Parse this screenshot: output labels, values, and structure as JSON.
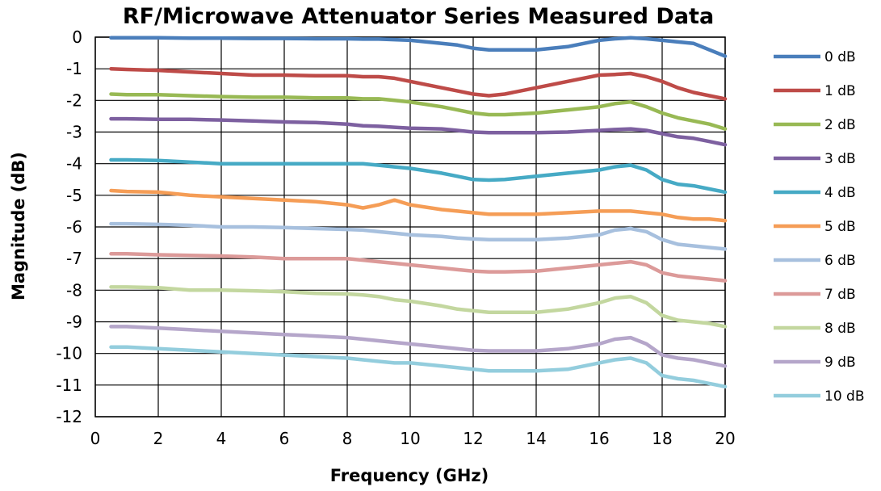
{
  "chart_data": {
    "type": "line",
    "title": "RF/Microwave Attenuator Series Measured Data",
    "xlabel": "Frequency (GHz)",
    "ylabel": "Magnitude (dB)",
    "xlim": [
      0,
      20
    ],
    "ylim": [
      -12,
      0
    ],
    "xticks": [
      0,
      2,
      4,
      6,
      8,
      10,
      12,
      14,
      16,
      18,
      20
    ],
    "yticks": [
      0,
      -1,
      -2,
      -3,
      -4,
      -5,
      -6,
      -7,
      -8,
      -9,
      -10,
      -11,
      -12
    ],
    "grid": true,
    "legend_position": "right",
    "x": [
      0.5,
      1,
      2,
      3,
      4,
      5,
      6,
      7,
      8,
      8.5,
      9,
      9.5,
      10,
      11,
      11.5,
      12,
      12.5,
      13,
      14,
      15,
      16,
      16.5,
      17,
      17.5,
      18,
      18.5,
      19,
      19.5,
      20
    ],
    "series": [
      {
        "name": "0 dB",
        "color": "#4a7ebb",
        "values": [
          -0.02,
          -0.02,
          -0.02,
          -0.03,
          -0.03,
          -0.04,
          -0.04,
          -0.05,
          -0.05,
          -0.06,
          -0.06,
          -0.08,
          -0.1,
          -0.2,
          -0.25,
          -0.35,
          -0.4,
          -0.4,
          -0.4,
          -0.3,
          -0.1,
          -0.05,
          -0.02,
          -0.05,
          -0.1,
          -0.15,
          -0.2,
          -0.4,
          -0.6
        ]
      },
      {
        "name": "1 dB",
        "color": "#be4b48",
        "values": [
          -1.0,
          -1.02,
          -1.05,
          -1.1,
          -1.15,
          -1.2,
          -1.2,
          -1.22,
          -1.22,
          -1.25,
          -1.25,
          -1.3,
          -1.4,
          -1.6,
          -1.7,
          -1.8,
          -1.85,
          -1.8,
          -1.6,
          -1.4,
          -1.2,
          -1.18,
          -1.15,
          -1.25,
          -1.4,
          -1.6,
          -1.75,
          -1.85,
          -1.95
        ]
      },
      {
        "name": "2 dB",
        "color": "#98b954",
        "values": [
          -1.8,
          -1.82,
          -1.82,
          -1.85,
          -1.88,
          -1.9,
          -1.9,
          -1.92,
          -1.92,
          -1.95,
          -1.95,
          -2.0,
          -2.05,
          -2.2,
          -2.3,
          -2.4,
          -2.45,
          -2.45,
          -2.4,
          -2.3,
          -2.2,
          -2.1,
          -2.05,
          -2.2,
          -2.4,
          -2.55,
          -2.65,
          -2.75,
          -2.9
        ]
      },
      {
        "name": "3 dB",
        "color": "#7d60a0",
        "values": [
          -2.58,
          -2.58,
          -2.6,
          -2.6,
          -2.62,
          -2.65,
          -2.68,
          -2.7,
          -2.75,
          -2.8,
          -2.82,
          -2.85,
          -2.88,
          -2.9,
          -2.95,
          -3.0,
          -3.02,
          -3.02,
          -3.02,
          -3.0,
          -2.95,
          -2.92,
          -2.9,
          -2.95,
          -3.05,
          -3.15,
          -3.2,
          -3.3,
          -3.4
        ]
      },
      {
        "name": "4 dB",
        "color": "#46aac5",
        "values": [
          -3.88,
          -3.88,
          -3.9,
          -3.95,
          -4.0,
          -4.0,
          -4.0,
          -4.0,
          -4.0,
          -4.0,
          -4.05,
          -4.1,
          -4.15,
          -4.3,
          -4.4,
          -4.5,
          -4.52,
          -4.5,
          -4.4,
          -4.3,
          -4.2,
          -4.1,
          -4.05,
          -4.2,
          -4.5,
          -4.65,
          -4.7,
          -4.8,
          -4.9
        ]
      },
      {
        "name": "5 dB",
        "color": "#f59d56",
        "values": [
          -4.85,
          -4.88,
          -4.9,
          -5.0,
          -5.05,
          -5.1,
          -5.15,
          -5.2,
          -5.3,
          -5.4,
          -5.3,
          -5.15,
          -5.3,
          -5.45,
          -5.5,
          -5.55,
          -5.6,
          -5.6,
          -5.6,
          -5.55,
          -5.5,
          -5.5,
          -5.5,
          -5.55,
          -5.6,
          -5.7,
          -5.75,
          -5.75,
          -5.8
        ]
      },
      {
        "name": "6 dB",
        "color": "#a7c0de",
        "values": [
          -5.9,
          -5.9,
          -5.92,
          -5.95,
          -6.0,
          -6.0,
          -6.02,
          -6.05,
          -6.08,
          -6.1,
          -6.15,
          -6.2,
          -6.25,
          -6.3,
          -6.35,
          -6.38,
          -6.4,
          -6.4,
          -6.4,
          -6.35,
          -6.25,
          -6.1,
          -6.05,
          -6.15,
          -6.4,
          -6.55,
          -6.6,
          -6.65,
          -6.7
        ]
      },
      {
        "name": "7 dB",
        "color": "#dc9a99",
        "values": [
          -6.85,
          -6.85,
          -6.88,
          -6.9,
          -6.92,
          -6.95,
          -7.0,
          -7.0,
          -7.0,
          -7.05,
          -7.1,
          -7.15,
          -7.2,
          -7.3,
          -7.35,
          -7.4,
          -7.42,
          -7.42,
          -7.4,
          -7.3,
          -7.2,
          -7.15,
          -7.1,
          -7.2,
          -7.45,
          -7.55,
          -7.6,
          -7.65,
          -7.7
        ]
      },
      {
        "name": "8 dB",
        "color": "#c3d79f",
        "values": [
          -7.9,
          -7.9,
          -7.92,
          -8.0,
          -8.0,
          -8.02,
          -8.05,
          -8.1,
          -8.12,
          -8.15,
          -8.2,
          -8.3,
          -8.35,
          -8.5,
          -8.6,
          -8.65,
          -8.7,
          -8.7,
          -8.7,
          -8.6,
          -8.4,
          -8.25,
          -8.2,
          -8.4,
          -8.8,
          -8.95,
          -9.0,
          -9.05,
          -9.15
        ]
      },
      {
        "name": "9 dB",
        "color": "#b5a6ca",
        "values": [
          -9.15,
          -9.15,
          -9.2,
          -9.25,
          -9.3,
          -9.35,
          -9.4,
          -9.45,
          -9.5,
          -9.55,
          -9.6,
          -9.65,
          -9.7,
          -9.8,
          -9.85,
          -9.9,
          -9.92,
          -9.92,
          -9.92,
          -9.85,
          -9.7,
          -9.55,
          -9.5,
          -9.7,
          -10.05,
          -10.15,
          -10.2,
          -10.3,
          -10.4
        ]
      },
      {
        "name": "10 dB",
        "color": "#93cddd",
        "values": [
          -9.8,
          -9.8,
          -9.85,
          -9.9,
          -9.95,
          -10.0,
          -10.05,
          -10.1,
          -10.15,
          -10.2,
          -10.25,
          -10.3,
          -10.3,
          -10.4,
          -10.45,
          -10.5,
          -10.55,
          -10.55,
          -10.55,
          -10.5,
          -10.3,
          -10.2,
          -10.15,
          -10.3,
          -10.7,
          -10.8,
          -10.85,
          -10.95,
          -11.05
        ]
      }
    ]
  }
}
